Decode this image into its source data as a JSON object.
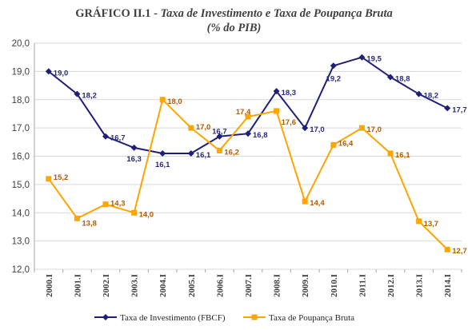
{
  "title": {
    "main": "GRÁFICO II.1 -",
    "subtitle": "Taxa de Investimento e Taxa de Poupança Bruta",
    "line2": "(% do PIB)"
  },
  "chart_data": {
    "type": "line",
    "categories": [
      "2000.I",
      "2001.I",
      "2002.I",
      "2003.I",
      "2004.I",
      "2005.I",
      "2006.I",
      "2007.I",
      "2008.I",
      "2009.I",
      "2010.I",
      "2011.I",
      "2012.I",
      "2013.I",
      "2014.I"
    ],
    "ylim": [
      12.0,
      20.0
    ],
    "yticks": [
      "12,0",
      "13,0",
      "14,0",
      "15,0",
      "16,0",
      "17,0",
      "18,0",
      "19,0",
      "20,0"
    ],
    "grid": true,
    "legend_position": "bottom",
    "series": [
      {
        "name": "Taxa de Investimento (FBCF)",
        "color": "#1f1f7a",
        "marker": "diamond",
        "values": [
          19.0,
          18.2,
          16.7,
          16.3,
          16.1,
          16.1,
          16.7,
          16.8,
          18.3,
          17.0,
          19.2,
          19.5,
          18.8,
          18.2,
          17.7
        ],
        "labels": [
          "19,0",
          "18,2",
          "16,7",
          "16,3",
          "16,1",
          "16,1",
          "16,7",
          "16,8",
          "18,3",
          "17,0",
          "19,2",
          "19,5",
          "18,8",
          "18,2",
          "17,7"
        ]
      },
      {
        "name": "Taxa de Poupança Bruta",
        "color": "#ffa500",
        "marker": "square",
        "values": [
          15.2,
          13.8,
          14.3,
          14.0,
          18.0,
          17.0,
          16.2,
          17.4,
          17.6,
          14.4,
          16.4,
          17.0,
          16.1,
          13.7,
          12.7
        ],
        "labels": [
          "15,2",
          "13,8",
          "14,3",
          "14,0",
          "18,0",
          "17,0",
          "16,2",
          "17,4",
          "17,6",
          "14,4",
          "16,4",
          "17,0",
          "16,1",
          "13,7",
          "12,7"
        ]
      }
    ]
  }
}
